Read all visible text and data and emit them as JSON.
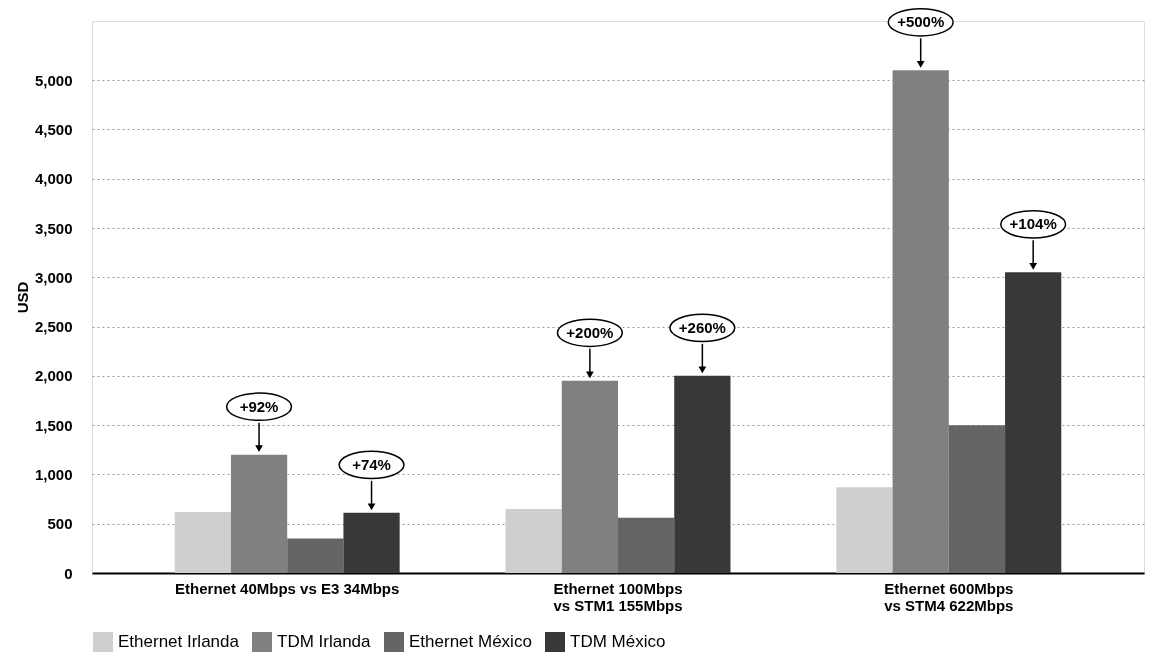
{
  "chart_data": {
    "type": "bar",
    "ylabel": "USD",
    "categories": [
      "Ethernet 40Mbps vs E3 34Mbps",
      "Ethernet 100Mbps\nvs STM1 155Mbps",
      "Ethernet 600Mbps\nvs STM4 622Mbps"
    ],
    "series": [
      {
        "name": "Ethernet Irlanda",
        "color": "#cfcfcf",
        "values": [
          620,
          650,
          870
        ]
      },
      {
        "name": "TDM Irlanda",
        "color": "#808080",
        "values": [
          1200,
          1950,
          5100
        ]
      },
      {
        "name": "Ethernet México",
        "color": "#656565",
        "values": [
          350,
          560,
          1500
        ]
      },
      {
        "name": "TDM México",
        "color": "#383838",
        "values": [
          610,
          2000,
          3050
        ]
      }
    ],
    "ylim": [
      0,
      5600
    ],
    "yticks": [
      0,
      500,
      {
        "value": 1000,
        "label": "1,000"
      },
      {
        "value": 1500,
        "label": "1,500"
      },
      {
        "value": 2000,
        "label": "2,000"
      },
      {
        "value": 2500,
        "label": "2,500"
      },
      {
        "value": 3000,
        "label": "3,000"
      },
      {
        "value": 3500,
        "label": "3,500"
      },
      {
        "value": 4000,
        "label": "4,000"
      },
      {
        "value": 4500,
        "label": "4,500"
      },
      {
        "value": 5000,
        "label": "5,000"
      }
    ],
    "grid": "y",
    "legend": "bottom",
    "annotations": [
      {
        "text": "+92%",
        "y": 1200
      },
      {
        "text": "+74%",
        "y": 610
      },
      {
        "text": "+200%",
        "y": 1950
      },
      {
        "text": "+260%",
        "y": 2000
      },
      {
        "text": "+500%",
        "y": 5100
      },
      {
        "text": "+104%",
        "y": 3050
      }
    ]
  }
}
